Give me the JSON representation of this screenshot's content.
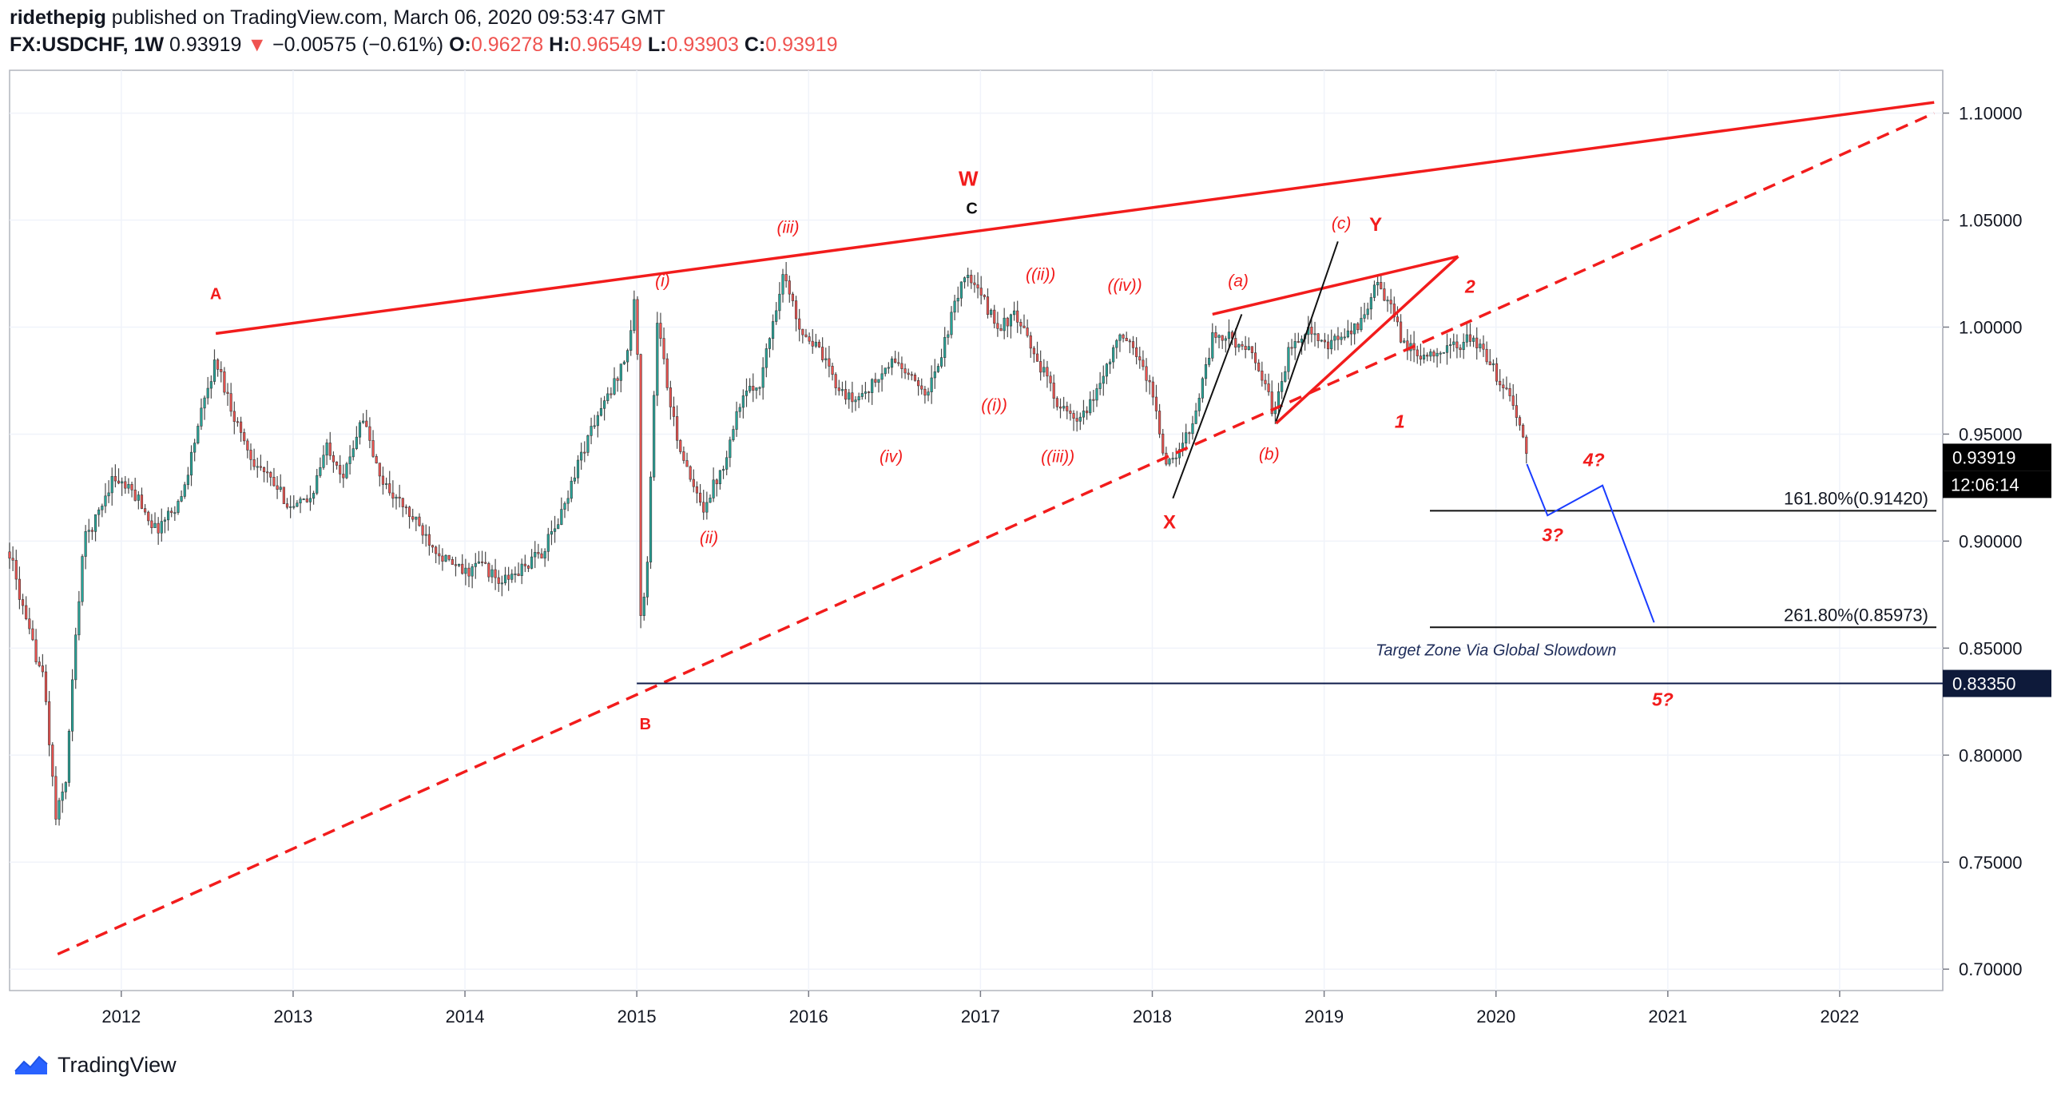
{
  "header": {
    "author": "ridethepig",
    "published": "published on TradingView.com, March 06, 2020 09:53:47 GMT",
    "symbol": "FX:USDCHF, 1W",
    "price": "0.93919",
    "change_arrow": "▼",
    "change": "−0.00575 (−0.61%)",
    "o_label": "O:",
    "o_value": "0.96278",
    "h_label": "H:",
    "h_value": "0.96549",
    "l_label": "L:",
    "l_value": "0.93903",
    "c_label": "C:",
    "c_value": "0.93919"
  },
  "footer": {
    "brand": "TradingView",
    "logo_icon": "tradingview-logo-icon"
  },
  "colors": {
    "bull": "#26a69a",
    "bear": "#ef5350",
    "wave_red": "#f21c1c",
    "projection_blue": "#1a3cff",
    "axis_text": "#131722"
  },
  "chart_data": {
    "type": "candlestick",
    "symbol": "FX:USDCHF",
    "interval": "1W",
    "grid": true,
    "x_ticks": [
      "2012",
      "2013",
      "2014",
      "2015",
      "2016",
      "2017",
      "2018",
      "2019",
      "2020",
      "2021",
      "2022"
    ],
    "x_range": [
      2011.35,
      2022.6
    ],
    "y_ticks": [
      "1.10000",
      "1.05000",
      "1.00000",
      "0.95000",
      "0.90000",
      "0.85000",
      "0.80000",
      "0.75000",
      "0.70000"
    ],
    "y_range": [
      0.69,
      1.12
    ],
    "price_path": [
      [
        2011.35,
        0.895
      ],
      [
        2011.45,
        0.86
      ],
      [
        2011.55,
        0.835
      ],
      [
        2011.62,
        0.77
      ],
      [
        2011.68,
        0.79
      ],
      [
        2011.72,
        0.84
      ],
      [
        2011.78,
        0.9
      ],
      [
        2011.85,
        0.91
      ],
      [
        2011.95,
        0.93
      ],
      [
        2012.1,
        0.92
      ],
      [
        2012.2,
        0.905
      ],
      [
        2012.35,
        0.92
      ],
      [
        2012.45,
        0.955
      ],
      [
        2012.55,
        0.985
      ],
      [
        2012.65,
        0.96
      ],
      [
        2012.75,
        0.94
      ],
      [
        2012.9,
        0.925
      ],
      [
        2013.0,
        0.915
      ],
      [
        2013.1,
        0.92
      ],
      [
        2013.2,
        0.945
      ],
      [
        2013.3,
        0.93
      ],
      [
        2013.4,
        0.96
      ],
      [
        2013.5,
        0.93
      ],
      [
        2013.65,
        0.915
      ],
      [
        2013.8,
        0.9
      ],
      [
        2013.9,
        0.89
      ],
      [
        2014.0,
        0.885
      ],
      [
        2014.1,
        0.89
      ],
      [
        2014.2,
        0.88
      ],
      [
        2014.3,
        0.885
      ],
      [
        2014.45,
        0.895
      ],
      [
        2014.55,
        0.91
      ],
      [
        2014.65,
        0.935
      ],
      [
        2014.75,
        0.955
      ],
      [
        2014.85,
        0.97
      ],
      [
        2014.95,
        0.99
      ],
      [
        2015.0,
        1.02
      ],
      [
        2015.02,
        0.86
      ],
      [
        2015.06,
        0.89
      ],
      [
        2015.12,
        1.005
      ],
      [
        2015.2,
        0.96
      ],
      [
        2015.3,
        0.93
      ],
      [
        2015.38,
        0.915
      ],
      [
        2015.5,
        0.935
      ],
      [
        2015.6,
        0.965
      ],
      [
        2015.72,
        0.975
      ],
      [
        2015.85,
        1.025
      ],
      [
        2015.95,
        1.0
      ],
      [
        2016.05,
        0.99
      ],
      [
        2016.15,
        0.975
      ],
      [
        2016.25,
        0.965
      ],
      [
        2016.4,
        0.975
      ],
      [
        2016.5,
        0.985
      ],
      [
        2016.6,
        0.975
      ],
      [
        2016.7,
        0.97
      ],
      [
        2016.8,
        0.995
      ],
      [
        2016.9,
        1.025
      ],
      [
        2017.0,
        1.015
      ],
      [
        2017.1,
        1.0
      ],
      [
        2017.2,
        1.005
      ],
      [
        2017.3,
        0.99
      ],
      [
        2017.45,
        0.965
      ],
      [
        2017.55,
        0.955
      ],
      [
        2017.62,
        0.96
      ],
      [
        2017.7,
        0.975
      ],
      [
        2017.8,
        0.995
      ],
      [
        2017.9,
        0.99
      ],
      [
        2018.0,
        0.97
      ],
      [
        2018.08,
        0.935
      ],
      [
        2018.15,
        0.94
      ],
      [
        2018.25,
        0.96
      ],
      [
        2018.35,
        0.995
      ],
      [
        2018.45,
        0.995
      ],
      [
        2018.55,
        0.99
      ],
      [
        2018.65,
        0.975
      ],
      [
        2018.7,
        0.96
      ],
      [
        2018.8,
        0.99
      ],
      [
        2018.9,
        1.0
      ],
      [
        2019.0,
        0.99
      ],
      [
        2019.1,
        0.995
      ],
      [
        2019.2,
        1.0
      ],
      [
        2019.3,
        1.02
      ],
      [
        2019.38,
        1.01
      ],
      [
        2019.45,
        0.995
      ],
      [
        2019.55,
        0.985
      ],
      [
        2019.65,
        0.99
      ],
      [
        2019.75,
        0.99
      ],
      [
        2019.85,
        0.995
      ],
      [
        2019.95,
        0.985
      ],
      [
        2020.02,
        0.975
      ],
      [
        2020.1,
        0.965
      ],
      [
        2020.18,
        0.939
      ]
    ],
    "price_lines": [
      {
        "label": "161.80%(0.91420)",
        "value": 0.9142
      },
      {
        "label": "261.80%(0.85973)",
        "value": 0.85973
      }
    ],
    "support_line": {
      "value": 0.8335,
      "price_label": "0.83350"
    },
    "current_price_label": "0.93919",
    "countdown_label": "12:06:14",
    "annotation": "Target Zone Via Global Slowdown",
    "wave_labels": [
      "A",
      "B",
      "W",
      "C",
      "X",
      "Y",
      "(i)",
      "(ii)",
      "(iii)",
      "(iv)",
      "((i))",
      "((ii))",
      "((iii))",
      "((iv))",
      "(a)",
      "(b)",
      "(c)",
      "1",
      "2",
      "3?",
      "4?",
      "5?"
    ],
    "trendlines": [
      {
        "style": "solid",
        "color": "red",
        "from": [
          2012.55,
          0.997
        ],
        "to": [
          2022.55,
          1.105
        ]
      },
      {
        "style": "dashed",
        "color": "red",
        "from": [
          2011.63,
          0.707
        ],
        "to": [
          2022.55,
          1.1
        ]
      },
      {
        "style": "solid",
        "color": "red",
        "from": [
          2018.35,
          1.006
        ],
        "to": [
          2019.78,
          1.033
        ]
      },
      {
        "style": "solid",
        "color": "red",
        "from": [
          2018.72,
          0.955
        ],
        "to": [
          2019.78,
          1.033
        ]
      },
      {
        "style": "solid",
        "color": "black",
        "from": [
          2018.12,
          0.92
        ],
        "to": [
          2018.52,
          1.006
        ]
      },
      {
        "style": "solid",
        "color": "black",
        "from": [
          2018.72,
          0.956
        ],
        "to": [
          2019.08,
          1.04
        ]
      }
    ],
    "projection": [
      [
        2020.18,
        0.936
      ],
      [
        2020.3,
        0.912
      ],
      [
        2020.62,
        0.926
      ],
      [
        2020.92,
        0.862
      ]
    ]
  }
}
